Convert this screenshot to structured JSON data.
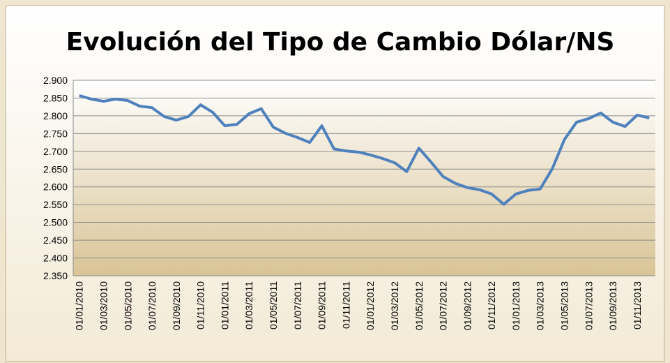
{
  "chart_data": {
    "type": "line",
    "title": "Evolución del Tipo de Cambio Dólar/NS",
    "categories": [
      "01/01/2010",
      null,
      "01/03/2010",
      null,
      "01/05/2010",
      null,
      "01/07/2010",
      null,
      "01/09/2010",
      null,
      "01/11/2010",
      null,
      "01/01/2011",
      null,
      "01/03/2011",
      null,
      "01/05/2011",
      null,
      "01/07/2011",
      null,
      "01/09/2011",
      null,
      "01/11/2011",
      null,
      "01/01/2012",
      null,
      "01/03/2012",
      null,
      "01/05/2012",
      null,
      "01/07/2012",
      null,
      "01/09/2012",
      null,
      "01/11/2012",
      null,
      "01/01/2013",
      null,
      "01/03/2013",
      null,
      "01/05/2013",
      null,
      "01/07/2013",
      null,
      "01/09/2013",
      null,
      "01/11/2013",
      null
    ],
    "series": [
      {
        "color": "#4f81bd",
        "values": [
          2.857,
          2.847,
          2.841,
          2.847,
          2.843,
          2.827,
          2.823,
          2.798,
          2.788,
          2.798,
          2.831,
          2.81,
          2.772,
          2.776,
          2.806,
          2.82,
          2.768,
          2.751,
          2.739,
          2.725,
          2.772,
          2.707,
          2.701,
          2.698,
          2.69,
          2.68,
          2.668,
          2.643,
          2.709,
          2.67,
          2.629,
          2.61,
          2.598,
          2.592,
          2.58,
          2.551,
          2.58,
          2.59,
          2.594,
          2.651,
          2.733,
          2.782,
          2.792,
          2.808,
          2.782,
          2.77,
          2.802,
          2.794
        ]
      }
    ],
    "ylim": [
      2.35,
      2.9
    ],
    "yticks": [
      {
        "value": 2.35,
        "label": "2.350"
      },
      {
        "value": 2.4,
        "label": "2.400"
      },
      {
        "value": 2.45,
        "label": "2.450"
      },
      {
        "value": 2.5,
        "label": "2.500"
      },
      {
        "value": 2.55,
        "label": "2.550"
      },
      {
        "value": 2.6,
        "label": "2.600"
      },
      {
        "value": 2.65,
        "label": "2.650"
      },
      {
        "value": 2.7,
        "label": "2.700"
      },
      {
        "value": 2.75,
        "label": "2.750"
      },
      {
        "value": 2.8,
        "label": "2.800"
      },
      {
        "value": 2.85,
        "label": "2.850"
      },
      {
        "value": 2.9,
        "label": "2.900"
      }
    ],
    "grid": true
  }
}
